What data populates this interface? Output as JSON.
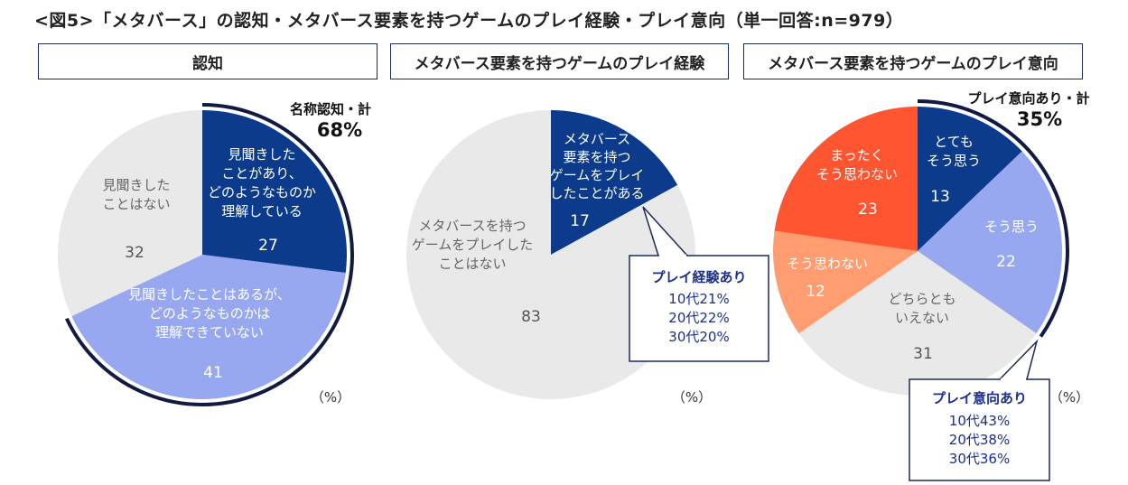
{
  "title": "<図5>「メタバース」の認知・メタバース要素を持つゲームのプレイ経験・プレイ意向（単一回答:n=979）",
  "colors": {
    "navy": "#0d3b8c",
    "periwinkle": "#98a8f0",
    "lightgray": "#e9e9e9",
    "red": "#ff5530",
    "salmon": "#ff9c70",
    "border": "#1a2a5a",
    "calloutText": "#1c2f8a"
  },
  "chart_data": [
    {
      "type": "pie",
      "panel_title": "認知",
      "unit": "（%）",
      "slices": [
        {
          "label": [
            "見聞きした",
            "ことがあり、",
            "どのようなものか",
            "理解している"
          ],
          "value": 27,
          "color": "#0d3b8c"
        },
        {
          "label": [
            "見聞きしたことはあるが、",
            "どのようなものかは",
            "理解できていない"
          ],
          "value": 41,
          "color": "#98a8f0"
        },
        {
          "label": [
            "見聞きした",
            "ことはない"
          ],
          "value": 32,
          "color": "#e9e9e9"
        }
      ],
      "total_label": "名称認知・計",
      "total_value": "68%"
    },
    {
      "type": "pie",
      "panel_title": "メタバース要素を持つゲームのプレイ経験",
      "unit": "（%）",
      "slices": [
        {
          "label": [
            "メタバース",
            "要素を持つ",
            "ゲームをプレイ",
            "したことがある"
          ],
          "value": 17,
          "color": "#0d3b8c"
        },
        {
          "label": [
            "メタバースを持つ",
            "ゲームをプレイした",
            "ことはない"
          ],
          "value": 83,
          "color": "#e9e9e9"
        }
      ],
      "callout": {
        "title": "プレイ経験あり",
        "lines": [
          "10代21%",
          "20代22%",
          "30代20%"
        ]
      }
    },
    {
      "type": "pie",
      "panel_title": "メタバース要素を持つゲームのプレイ意向",
      "unit": "（%）",
      "slices": [
        {
          "label": [
            "とても",
            "そう思う"
          ],
          "value": 13,
          "color": "#0d3b8c"
        },
        {
          "label": [
            "そう思う"
          ],
          "value": 22,
          "color": "#98a8f0"
        },
        {
          "label": [
            "どちらとも",
            "いえない"
          ],
          "value": 31,
          "color": "#e9e9e9"
        },
        {
          "label": [
            "そう思わない"
          ],
          "value": 12,
          "color": "#ff9c70"
        },
        {
          "label": [
            "まったく",
            "そう思わない"
          ],
          "value": 23,
          "color": "#ff5530"
        }
      ],
      "total_label": "プレイ意向あり・計",
      "total_value": "35%",
      "callout": {
        "title": "プレイ意向あり",
        "lines": [
          "10代43%",
          "20代38%",
          "30代36%"
        ]
      }
    }
  ]
}
